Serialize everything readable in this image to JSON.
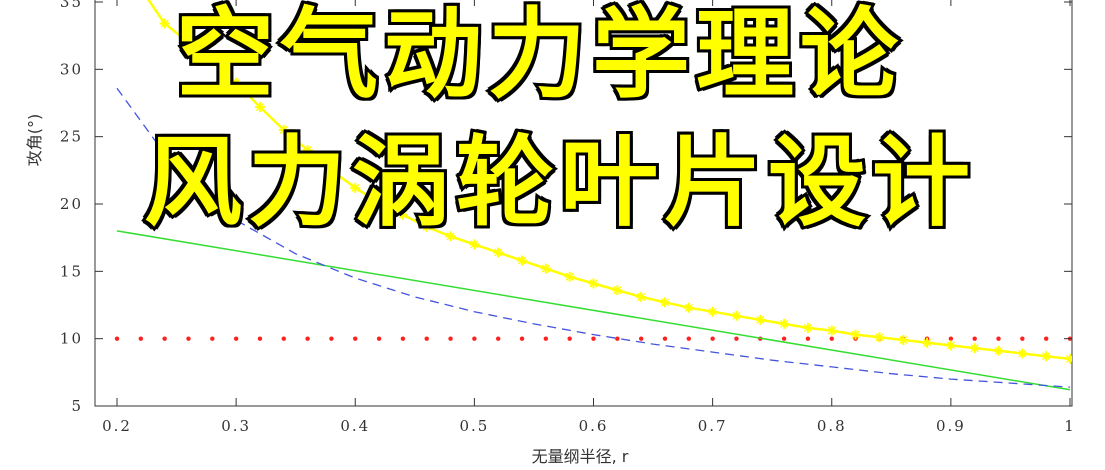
{
  "overlay": {
    "line1": "空气动力学理论",
    "line2": "风力涡轮叶片设计"
  },
  "chart_data": {
    "type": "line",
    "xlabel": "无量纲半径, r",
    "ylabel": "攻角(°)",
    "xlim": [
      0.2,
      1.0
    ],
    "ylim": [
      5,
      35
    ],
    "xticks": [
      "0.2",
      "0.3",
      "0.4",
      "0.5",
      "0.6",
      "0.7",
      "0.8",
      "0.9",
      "1"
    ],
    "xtick_values": [
      0.2,
      0.3,
      0.4,
      0.5,
      0.6,
      0.7,
      0.8,
      0.9,
      1.0
    ],
    "yticks": [
      "5",
      "10",
      "15",
      "20",
      "25",
      "30",
      "35"
    ],
    "ytick_values": [
      5,
      10,
      15,
      20,
      25,
      30,
      35
    ],
    "grid": false,
    "series": [
      {
        "style": "dotted-markers",
        "color": "#ff2020",
        "x": [
          0.2,
          0.24,
          0.28,
          0.32,
          0.36,
          0.4,
          0.44,
          0.48,
          0.52,
          0.56,
          0.6,
          0.64,
          0.68,
          0.72,
          0.76,
          0.8,
          0.84,
          0.88,
          0.92,
          0.96,
          1.0
        ],
        "values": [
          10,
          10,
          10,
          10,
          10,
          10,
          10,
          10,
          10,
          10,
          10,
          10,
          10,
          10,
          10,
          10,
          10,
          10,
          10,
          10,
          10
        ]
      },
      {
        "style": "solid",
        "color": "#33dd33",
        "x": [
          0.2,
          1.0
        ],
        "values": [
          18.0,
          6.2
        ]
      },
      {
        "style": "dashed",
        "color": "#4455dd",
        "x": [
          0.2,
          0.25,
          0.3,
          0.35,
          0.4,
          0.45,
          0.5,
          0.55,
          0.6,
          0.65,
          0.7,
          0.75,
          0.8,
          0.85,
          0.9,
          0.95,
          1.0
        ],
        "values": [
          28.6,
          22.5,
          18.8,
          16.3,
          14.5,
          13.1,
          12.0,
          11.1,
          10.3,
          9.6,
          9.0,
          8.4,
          7.9,
          7.4,
          7.0,
          6.7,
          6.4
        ]
      },
      {
        "style": "solid-star-markers",
        "color": "#ffff00",
        "x": [
          0.2,
          0.22,
          0.24,
          0.26,
          0.28,
          0.3,
          0.32,
          0.34,
          0.36,
          0.38,
          0.4,
          0.42,
          0.44,
          0.46,
          0.48,
          0.5,
          0.52,
          0.54,
          0.56,
          0.58,
          0.6,
          0.62,
          0.64,
          0.66,
          0.68,
          0.7,
          0.72,
          0.74,
          0.76,
          0.78,
          0.8,
          0.82,
          0.84,
          0.86,
          0.88,
          0.9,
          0.92,
          0.94,
          0.96,
          0.98,
          1.0
        ],
        "values": [
          39.0,
          36.0,
          33.4,
          32.0,
          30.6,
          29.0,
          27.2,
          25.5,
          24.0,
          22.5,
          21.2,
          20.1,
          19.2,
          18.3,
          17.6,
          17.0,
          16.4,
          15.8,
          15.2,
          14.6,
          14.1,
          13.6,
          13.1,
          12.7,
          12.3,
          12.0,
          11.7,
          11.4,
          11.1,
          10.8,
          10.6,
          10.3,
          10.1,
          9.9,
          9.7,
          9.5,
          9.3,
          9.1,
          8.9,
          8.7,
          8.5
        ]
      }
    ]
  }
}
